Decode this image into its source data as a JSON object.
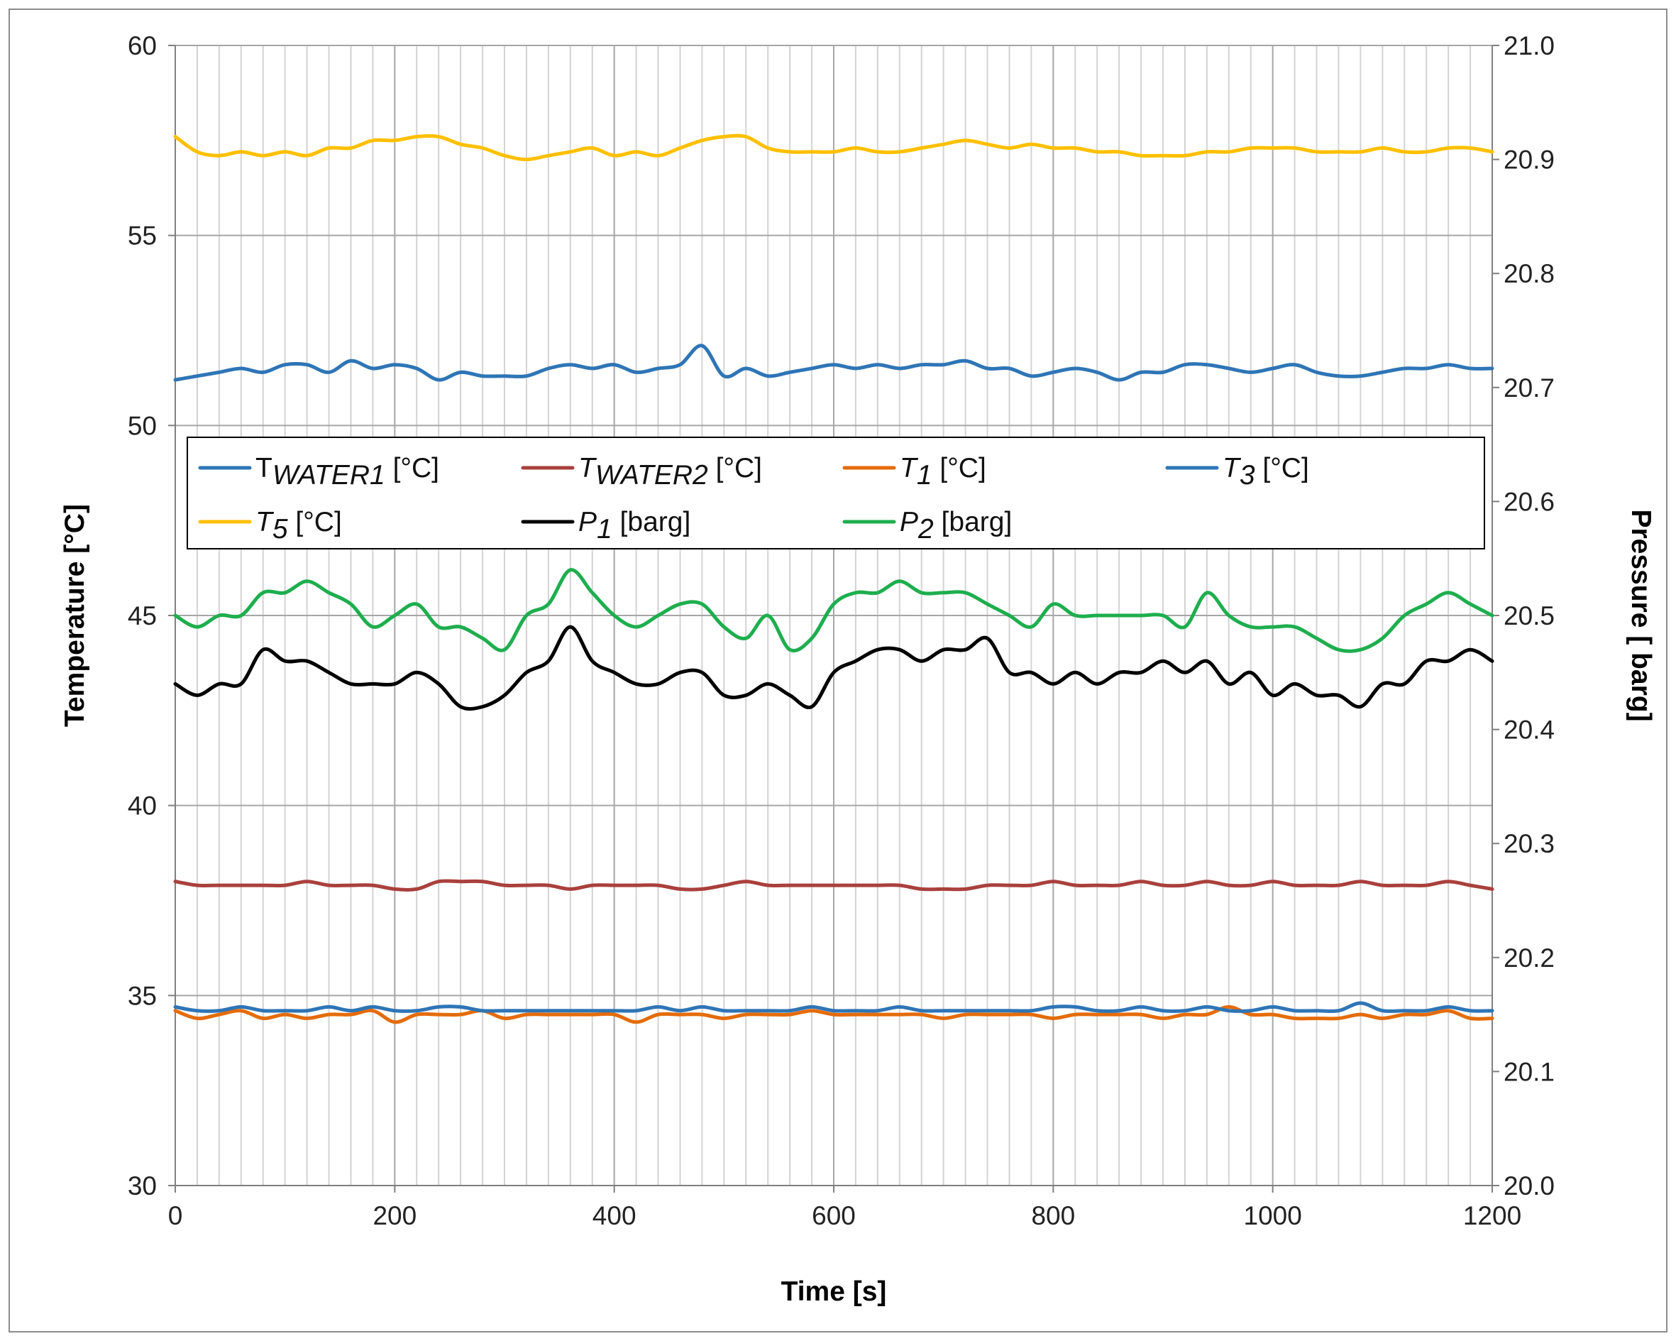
{
  "chart_data": {
    "type": "line",
    "title": "",
    "xlabel": "Time [s]",
    "ylabel": "Temperature [°C]",
    "y2label": "Pressure [ barg]",
    "xlim": [
      0,
      1200
    ],
    "ylim": [
      30,
      60
    ],
    "y2lim": [
      20.0,
      21.0
    ],
    "x_ticks": [
      0,
      200,
      400,
      600,
      800,
      1000,
      1200
    ],
    "x_tick_labels": [
      "0",
      "200",
      "400",
      "600",
      "800",
      "1000",
      "1200"
    ],
    "y_ticks": [
      30,
      35,
      40,
      45,
      50,
      55,
      60
    ],
    "y_tick_labels": [
      "30",
      "35",
      "40",
      "45",
      "50",
      "55",
      "60"
    ],
    "y2_ticks": [
      20.0,
      20.1,
      20.2,
      20.3,
      20.4,
      20.5,
      20.6,
      20.7,
      20.8,
      20.9,
      21.0
    ],
    "y2_tick_labels": [
      "20.0",
      "20.1",
      "20.2",
      "20.3",
      "20.4",
      "20.5",
      "20.6",
      "20.7",
      "20.8",
      "20.9",
      "21.0"
    ],
    "grid": true,
    "legend_position": "inside-middle",
    "x": [
      0,
      20,
      40,
      60,
      80,
      100,
      120,
      140,
      160,
      180,
      200,
      220,
      240,
      260,
      280,
      300,
      320,
      340,
      360,
      380,
      400,
      420,
      440,
      460,
      480,
      500,
      520,
      540,
      560,
      580,
      600,
      620,
      640,
      660,
      680,
      700,
      720,
      740,
      760,
      780,
      800,
      820,
      840,
      860,
      880,
      900,
      920,
      940,
      960,
      980,
      1000,
      1020,
      1040,
      1060,
      1080,
      1100,
      1120,
      1140,
      1160,
      1180,
      1200
    ],
    "series": [
      {
        "name": "T_WATER1 [°C]",
        "label_main": "T",
        "label_sub": "WATER1",
        "label_unit": " [°C]",
        "axis": "left",
        "color": "#2E75B6",
        "values": [
          34.7,
          34.6,
          34.6,
          34.7,
          34.6,
          34.6,
          34.6,
          34.7,
          34.6,
          34.7,
          34.6,
          34.6,
          34.7,
          34.7,
          34.6,
          34.6,
          34.6,
          34.6,
          34.6,
          34.6,
          34.6,
          34.6,
          34.7,
          34.6,
          34.7,
          34.6,
          34.6,
          34.6,
          34.6,
          34.7,
          34.6,
          34.6,
          34.6,
          34.7,
          34.6,
          34.6,
          34.6,
          34.6,
          34.6,
          34.6,
          34.7,
          34.7,
          34.6,
          34.6,
          34.7,
          34.6,
          34.6,
          34.7,
          34.6,
          34.6,
          34.7,
          34.6,
          34.6,
          34.6,
          34.8,
          34.6,
          34.6,
          34.6,
          34.7,
          34.6,
          34.6
        ]
      },
      {
        "name": "T_WATER2 [°C]",
        "label_main": "T",
        "label_sub": "WATER2",
        "label_unit": " [°C]",
        "axis": "left",
        "color": "#A9403C",
        "values": [
          38.0,
          37.9,
          37.9,
          37.9,
          37.9,
          37.9,
          38.0,
          37.9,
          37.9,
          37.9,
          37.8,
          37.8,
          38.0,
          38.0,
          38.0,
          37.9,
          37.9,
          37.9,
          37.8,
          37.9,
          37.9,
          37.9,
          37.9,
          37.8,
          37.8,
          37.9,
          38.0,
          37.9,
          37.9,
          37.9,
          37.9,
          37.9,
          37.9,
          37.9,
          37.8,
          37.8,
          37.8,
          37.9,
          37.9,
          37.9,
          38.0,
          37.9,
          37.9,
          37.9,
          38.0,
          37.9,
          37.9,
          38.0,
          37.9,
          37.9,
          38.0,
          37.9,
          37.9,
          37.9,
          38.0,
          37.9,
          37.9,
          37.9,
          38.0,
          37.9,
          37.8
        ]
      },
      {
        "name": "T1 [°C]",
        "label_main": "T",
        "label_sub": "1",
        "label_unit": " [°C]",
        "axis": "left",
        "color": "#E46C0A",
        "values": [
          34.6,
          34.4,
          34.5,
          34.6,
          34.4,
          34.5,
          34.4,
          34.5,
          34.5,
          34.6,
          34.3,
          34.5,
          34.5,
          34.5,
          34.6,
          34.4,
          34.5,
          34.5,
          34.5,
          34.5,
          34.5,
          34.3,
          34.5,
          34.5,
          34.5,
          34.4,
          34.5,
          34.5,
          34.5,
          34.6,
          34.5,
          34.5,
          34.5,
          34.5,
          34.5,
          34.4,
          34.5,
          34.5,
          34.5,
          34.5,
          34.4,
          34.5,
          34.5,
          34.5,
          34.5,
          34.4,
          34.5,
          34.5,
          34.7,
          34.5,
          34.5,
          34.4,
          34.4,
          34.4,
          34.5,
          34.4,
          34.5,
          34.5,
          34.6,
          34.4,
          34.4
        ]
      },
      {
        "name": "T3 [°C]",
        "label_main": "T",
        "label_sub": "3",
        "label_unit": " [°C]",
        "axis": "left",
        "color": "#2E75B6",
        "values": [
          51.2,
          51.3,
          51.4,
          51.5,
          51.4,
          51.6,
          51.6,
          51.4,
          51.7,
          51.5,
          51.6,
          51.5,
          51.2,
          51.4,
          51.3,
          51.3,
          51.3,
          51.5,
          51.6,
          51.5,
          51.6,
          51.4,
          51.5,
          51.6,
          52.1,
          51.3,
          51.5,
          51.3,
          51.4,
          51.5,
          51.6,
          51.5,
          51.6,
          51.5,
          51.6,
          51.6,
          51.7,
          51.5,
          51.5,
          51.3,
          51.4,
          51.5,
          51.4,
          51.2,
          51.4,
          51.4,
          51.6,
          51.6,
          51.5,
          51.4,
          51.5,
          51.6,
          51.4,
          51.3,
          51.3,
          51.4,
          51.5,
          51.5,
          51.6,
          51.5,
          51.5
        ]
      },
      {
        "name": "T5 [°C]",
        "label_main": "T",
        "label_sub": "5",
        "label_unit": " [°C]",
        "axis": "left",
        "color": "#FFC000",
        "values": [
          57.6,
          57.2,
          57.1,
          57.2,
          57.1,
          57.2,
          57.1,
          57.3,
          57.3,
          57.5,
          57.5,
          57.6,
          57.6,
          57.4,
          57.3,
          57.1,
          57.0,
          57.1,
          57.2,
          57.3,
          57.1,
          57.2,
          57.1,
          57.3,
          57.5,
          57.6,
          57.6,
          57.3,
          57.2,
          57.2,
          57.2,
          57.3,
          57.2,
          57.2,
          57.3,
          57.4,
          57.5,
          57.4,
          57.3,
          57.4,
          57.3,
          57.3,
          57.2,
          57.2,
          57.1,
          57.1,
          57.1,
          57.2,
          57.2,
          57.3,
          57.3,
          57.3,
          57.2,
          57.2,
          57.2,
          57.3,
          57.2,
          57.2,
          57.3,
          57.3,
          57.2
        ]
      },
      {
        "name": "P1 [barg]",
        "label_main": "P",
        "label_sub": "1",
        "label_unit": " [barg]",
        "axis": "right",
        "color": "#000000",
        "values": [
          20.44,
          20.43,
          20.44,
          20.44,
          20.47,
          20.46,
          20.46,
          20.45,
          20.44,
          20.44,
          20.44,
          20.45,
          20.44,
          20.42,
          20.42,
          20.43,
          20.45,
          20.46,
          20.49,
          20.46,
          20.45,
          20.44,
          20.44,
          20.45,
          20.45,
          20.43,
          20.43,
          20.44,
          20.43,
          20.42,
          20.45,
          20.46,
          20.47,
          20.47,
          20.46,
          20.47,
          20.47,
          20.48,
          20.45,
          20.45,
          20.44,
          20.45,
          20.44,
          20.45,
          20.45,
          20.46,
          20.45,
          20.46,
          20.44,
          20.45,
          20.43,
          20.44,
          20.43,
          20.43,
          20.42,
          20.44,
          20.44,
          20.46,
          20.46,
          20.47,
          20.46
        ]
      },
      {
        "name": "P2 [barg]",
        "label_main": "P",
        "label_sub": "2",
        "label_unit": " [barg]",
        "axis": "right",
        "color": "#1EAE4E",
        "values": [
          20.5,
          20.49,
          20.5,
          20.5,
          20.52,
          20.52,
          20.53,
          20.52,
          20.51,
          20.49,
          20.5,
          20.51,
          20.49,
          20.49,
          20.48,
          20.47,
          20.5,
          20.51,
          20.54,
          20.52,
          20.5,
          20.49,
          20.5,
          20.51,
          20.51,
          20.49,
          20.48,
          20.5,
          20.47,
          20.48,
          20.51,
          20.52,
          20.52,
          20.53,
          20.52,
          20.52,
          20.52,
          20.51,
          20.5,
          20.49,
          20.51,
          20.5,
          20.5,
          20.5,
          20.5,
          20.5,
          20.49,
          20.52,
          20.5,
          20.49,
          20.49,
          20.49,
          20.48,
          20.47,
          20.47,
          20.48,
          20.5,
          20.51,
          20.52,
          20.51,
          20.5
        ]
      }
    ]
  }
}
